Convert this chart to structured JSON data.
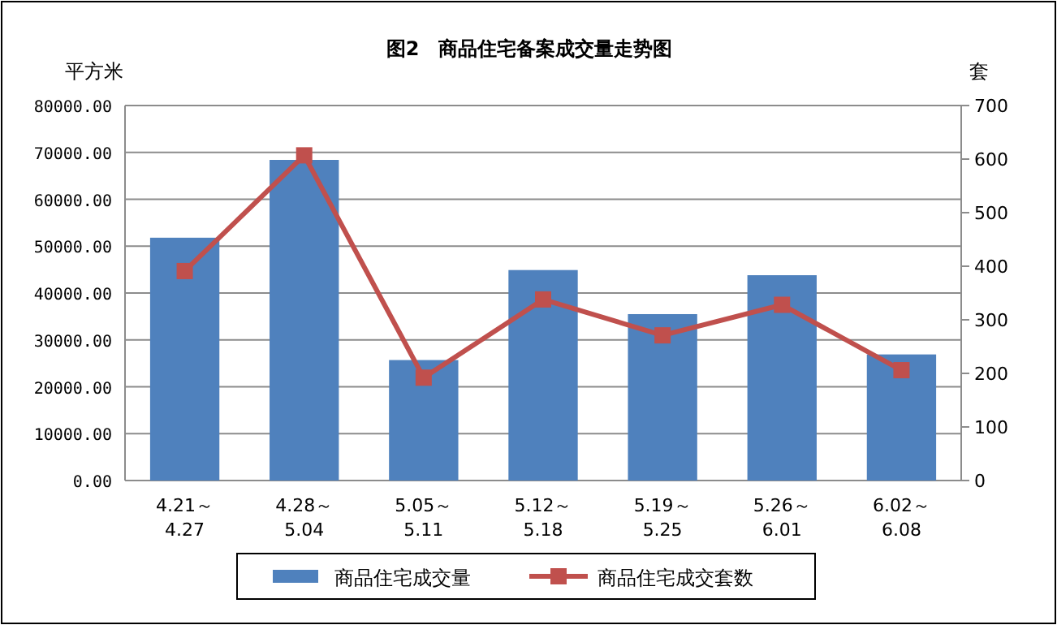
{
  "chart_data": {
    "type": "bar",
    "title": "图2　商品住宅备案成交量走势图",
    "ylabel": "平方米",
    "y2label": "套",
    "categories": [
      "4.21～\n4.27",
      "4.28～\n5.04",
      "5.05～\n5.11",
      "5.12～\n5.18",
      "5.19～\n5.25",
      "5.26～\n6.01",
      "6.02～\n6.08"
    ],
    "series": [
      {
        "name": "商品住宅成交量",
        "color": "#4f81bd",
        "values": [
          51800,
          68400,
          25700,
          44900,
          35500,
          43800,
          26900
        ]
      },
      {
        "name": "商品住宅成交套数",
        "type": "line",
        "axis": "y2",
        "color": "#c0504d",
        "marker": "square",
        "values": [
          391,
          607,
          192,
          338,
          271,
          328,
          206
        ]
      }
    ],
    "ylim": [
      0,
      80000
    ],
    "yticks": [
      {
        "value": 0,
        "label": "0.00"
      },
      {
        "value": 10000,
        "label": "10000.00"
      },
      {
        "value": 20000,
        "label": "20000.00"
      },
      {
        "value": 30000,
        "label": "30000.00"
      },
      {
        "value": 40000,
        "label": "40000.00"
      },
      {
        "value": 50000,
        "label": "50000.00"
      },
      {
        "value": 60000,
        "label": "60000.00"
      },
      {
        "value": 70000,
        "label": "70000.00"
      },
      {
        "value": 80000,
        "label": "80000.00"
      }
    ],
    "y2lim": [
      0,
      700
    ],
    "y2ticks": [
      0,
      100,
      200,
      300,
      400,
      500,
      600,
      700
    ],
    "grid": "y",
    "legend": "bottom"
  }
}
